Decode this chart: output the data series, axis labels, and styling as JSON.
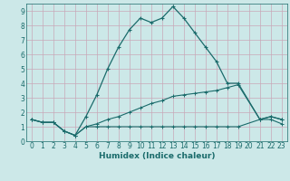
{
  "title": "",
  "xlabel": "Humidex (Indice chaleur)",
  "bg_color": "#cce8e8",
  "grid_color": "#b0d0d0",
  "line_color": "#1a6b6b",
  "xlim": [
    -0.5,
    23.5
  ],
  "ylim": [
    0,
    9.5
  ],
  "xticks": [
    0,
    1,
    2,
    3,
    4,
    5,
    6,
    7,
    8,
    9,
    10,
    11,
    12,
    13,
    14,
    15,
    16,
    17,
    18,
    19,
    20,
    21,
    22,
    23
  ],
  "yticks": [
    0,
    1,
    2,
    3,
    4,
    5,
    6,
    7,
    8,
    9
  ],
  "series1_x": [
    0,
    1,
    2,
    3,
    4,
    5,
    6,
    7,
    8,
    9,
    10,
    11,
    12,
    13,
    14,
    15,
    16,
    17,
    18,
    19,
    21,
    22,
    23
  ],
  "series1_y": [
    1.5,
    1.3,
    1.3,
    0.7,
    0.4,
    1.7,
    3.2,
    5.0,
    6.5,
    7.7,
    8.5,
    8.2,
    8.5,
    9.3,
    8.5,
    7.5,
    6.5,
    5.5,
    4.0,
    4.0,
    1.5,
    1.7,
    1.5
  ],
  "series2_x": [
    0,
    1,
    2,
    3,
    4,
    5,
    6,
    7,
    8,
    9,
    10,
    11,
    12,
    13,
    14,
    15,
    16,
    17,
    18,
    19,
    21,
    22,
    23
  ],
  "series2_y": [
    1.5,
    1.3,
    1.3,
    0.7,
    0.4,
    1.0,
    1.2,
    1.5,
    1.7,
    2.0,
    2.3,
    2.6,
    2.8,
    3.1,
    3.2,
    3.3,
    3.4,
    3.5,
    3.7,
    3.9,
    1.5,
    1.7,
    1.5
  ],
  "series3_x": [
    0,
    1,
    2,
    3,
    4,
    5,
    6,
    7,
    8,
    9,
    10,
    11,
    12,
    13,
    14,
    15,
    16,
    17,
    18,
    19,
    21,
    22,
    23
  ],
  "series3_y": [
    1.5,
    1.3,
    1.3,
    0.7,
    0.4,
    1.0,
    1.0,
    1.0,
    1.0,
    1.0,
    1.0,
    1.0,
    1.0,
    1.0,
    1.0,
    1.0,
    1.0,
    1.0,
    1.0,
    1.0,
    1.5,
    1.5,
    1.2
  ]
}
